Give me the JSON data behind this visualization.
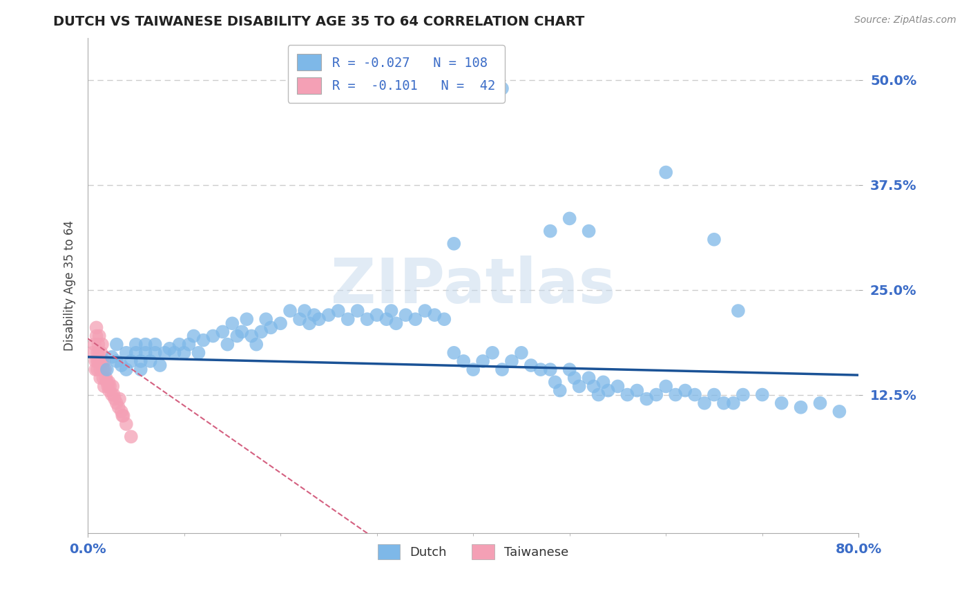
{
  "title": "DUTCH VS TAIWANESE DISABILITY AGE 35 TO 64 CORRELATION CHART",
  "source": "Source: ZipAtlas.com",
  "ylabel": "Disability Age 35 to 64",
  "xlim": [
    0.0,
    0.8
  ],
  "ylim": [
    -0.04,
    0.55
  ],
  "ytick_positions": [
    0.125,
    0.25,
    0.375,
    0.5
  ],
  "ytick_labels": [
    "12.5%",
    "25.0%",
    "37.5%",
    "50.0%"
  ],
  "xtick_positions": [
    0.0,
    0.8
  ],
  "xtick_labels": [
    "0.0%",
    "80.0%"
  ],
  "grid_color": "#cccccc",
  "background_color": "#ffffff",
  "dutch_color": "#7eb8e8",
  "taiwanese_color": "#f4a0b5",
  "dutch_line_color": "#1a5296",
  "taiwanese_line_color": "#d46080",
  "watermark": "ZIPatlas",
  "dutch_x": [
    0.02,
    0.025,
    0.03,
    0.03,
    0.035,
    0.04,
    0.04,
    0.045,
    0.05,
    0.05,
    0.055,
    0.055,
    0.06,
    0.06,
    0.065,
    0.07,
    0.07,
    0.075,
    0.08,
    0.085,
    0.09,
    0.095,
    0.1,
    0.105,
    0.11,
    0.115,
    0.12,
    0.13,
    0.14,
    0.145,
    0.15,
    0.155,
    0.16,
    0.165,
    0.17,
    0.175,
    0.18,
    0.185,
    0.19,
    0.2,
    0.21,
    0.22,
    0.225,
    0.23,
    0.235,
    0.24,
    0.25,
    0.26,
    0.27,
    0.28,
    0.29,
    0.3,
    0.31,
    0.315,
    0.32,
    0.33,
    0.34,
    0.35,
    0.36,
    0.37,
    0.38,
    0.39,
    0.4,
    0.41,
    0.42,
    0.43,
    0.44,
    0.45,
    0.46,
    0.47,
    0.48,
    0.485,
    0.49,
    0.5,
    0.505,
    0.51,
    0.52,
    0.525,
    0.53,
    0.535,
    0.54,
    0.55,
    0.56,
    0.57,
    0.58,
    0.59,
    0.6,
    0.61,
    0.62,
    0.63,
    0.64,
    0.65,
    0.66,
    0.67,
    0.68,
    0.7,
    0.72,
    0.74,
    0.76,
    0.78,
    0.38,
    0.43,
    0.48,
    0.5,
    0.52,
    0.6,
    0.65,
    0.675
  ],
  "dutch_y": [
    0.155,
    0.17,
    0.165,
    0.185,
    0.16,
    0.175,
    0.155,
    0.165,
    0.175,
    0.185,
    0.165,
    0.155,
    0.175,
    0.185,
    0.165,
    0.175,
    0.185,
    0.16,
    0.175,
    0.18,
    0.175,
    0.185,
    0.175,
    0.185,
    0.195,
    0.175,
    0.19,
    0.195,
    0.2,
    0.185,
    0.21,
    0.195,
    0.2,
    0.215,
    0.195,
    0.185,
    0.2,
    0.215,
    0.205,
    0.21,
    0.225,
    0.215,
    0.225,
    0.21,
    0.22,
    0.215,
    0.22,
    0.225,
    0.215,
    0.225,
    0.215,
    0.22,
    0.215,
    0.225,
    0.21,
    0.22,
    0.215,
    0.225,
    0.22,
    0.215,
    0.175,
    0.165,
    0.155,
    0.165,
    0.175,
    0.155,
    0.165,
    0.175,
    0.16,
    0.155,
    0.155,
    0.14,
    0.13,
    0.155,
    0.145,
    0.135,
    0.145,
    0.135,
    0.125,
    0.14,
    0.13,
    0.135,
    0.125,
    0.13,
    0.12,
    0.125,
    0.135,
    0.125,
    0.13,
    0.125,
    0.115,
    0.125,
    0.115,
    0.115,
    0.125,
    0.125,
    0.115,
    0.11,
    0.115,
    0.105,
    0.305,
    0.49,
    0.32,
    0.335,
    0.32,
    0.39,
    0.31,
    0.225
  ],
  "taiwanese_x": [
    0.005,
    0.007,
    0.008,
    0.008,
    0.009,
    0.009,
    0.01,
    0.01,
    0.01,
    0.011,
    0.011,
    0.012,
    0.012,
    0.013,
    0.013,
    0.013,
    0.014,
    0.015,
    0.015,
    0.016,
    0.016,
    0.017,
    0.017,
    0.018,
    0.019,
    0.02,
    0.021,
    0.022,
    0.022,
    0.023,
    0.025,
    0.026,
    0.027,
    0.028,
    0.03,
    0.032,
    0.033,
    0.035,
    0.036,
    0.037,
    0.04,
    0.045
  ],
  "taiwanese_y": [
    0.175,
    0.185,
    0.165,
    0.155,
    0.195,
    0.205,
    0.175,
    0.165,
    0.155,
    0.185,
    0.165,
    0.195,
    0.175,
    0.165,
    0.155,
    0.145,
    0.175,
    0.185,
    0.165,
    0.155,
    0.145,
    0.135,
    0.165,
    0.155,
    0.145,
    0.14,
    0.135,
    0.13,
    0.14,
    0.135,
    0.125,
    0.135,
    0.125,
    0.12,
    0.115,
    0.11,
    0.12,
    0.105,
    0.1,
    0.1,
    0.09,
    0.075
  ],
  "dutch_intercept": 0.17,
  "dutch_slope": -0.027,
  "taiwanese_intercept": 0.192,
  "taiwanese_slope": -0.8
}
